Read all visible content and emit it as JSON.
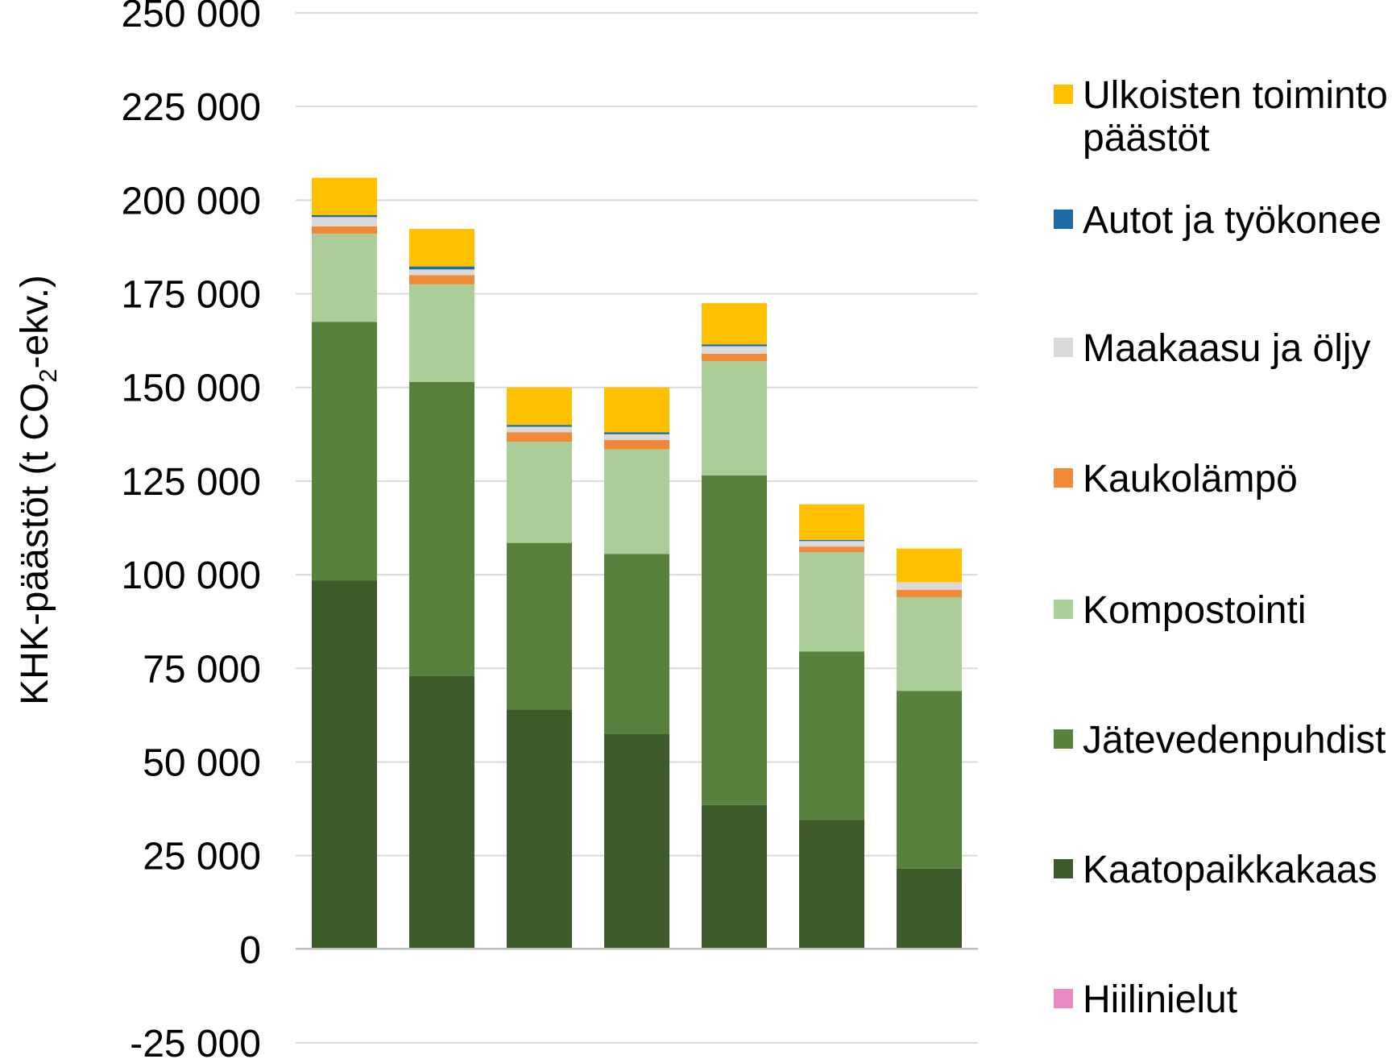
{
  "chart_data": {
    "type": "bar",
    "stacked": true,
    "title": "",
    "xlabel": "",
    "ylabel": "KHK-päästöt (t CO2-ekv.)",
    "ylabel_parts": {
      "before": "KHK-päästöt (t CO",
      "sub": "2",
      "after": "-ekv.)"
    },
    "ylim": [
      -25000,
      250000
    ],
    "yticks": [
      -25000,
      0,
      25000,
      50000,
      75000,
      100000,
      125000,
      150000,
      175000,
      200000,
      225000,
      250000
    ],
    "ytick_labels": [
      "-25 000",
      "0",
      "25 000",
      "50 000",
      "75 000",
      "100 000",
      "125 000",
      "150 000",
      "175 000",
      "200 000",
      "225 000",
      "250 000"
    ],
    "grid": true,
    "legend_position": "right",
    "categories": [
      "",
      "",
      "",
      "",
      "",
      "",
      ""
    ],
    "series": [
      {
        "name": "Kaatopaikkakaas",
        "color": "#3d5a2b",
        "values": [
          98500,
          73000,
          64000,
          57500,
          38500,
          34500,
          21500
        ]
      },
      {
        "name": "Jätevedenpuhdist",
        "color": "#57813c",
        "values": [
          69000,
          78500,
          44500,
          48000,
          88000,
          45000,
          47500
        ]
      },
      {
        "name": "Kompostointi",
        "color": "#abcd97",
        "values": [
          23500,
          26000,
          27000,
          28000,
          30500,
          26500,
          25000
        ]
      },
      {
        "name": "Kaukolämpö",
        "color": "#f08a36",
        "values": [
          2000,
          2500,
          2500,
          2500,
          2000,
          1500,
          2000
        ]
      },
      {
        "name": "Maakaasu ja öljy",
        "color": "#d9d9d9",
        "values": [
          2500,
          1500,
          1500,
          1500,
          2000,
          1500,
          2000
        ]
      },
      {
        "name": "Autot ja työkoneet",
        "color": "#1d6ba5",
        "values": [
          500,
          800,
          500,
          500,
          500,
          300,
          0
        ]
      },
      {
        "name": "Ulkoisten toimintojen päästöt",
        "color": "#ffc000",
        "values": [
          10000,
          10000,
          10000,
          12000,
          11000,
          9500,
          9000
        ]
      },
      {
        "name": "Hiilinielut",
        "color": "#e78ac3",
        "values": [
          0,
          0,
          0,
          0,
          0,
          0,
          0
        ]
      }
    ]
  },
  "legend": [
    {
      "label": "Ulkoisten toiminto\npäästöt",
      "color": "#ffc000"
    },
    {
      "label": "Autot ja työkonee",
      "color": "#1d6ba5"
    },
    {
      "label": "Maakaasu ja öljy",
      "color": "#d9d9d9"
    },
    {
      "label": "Kaukolämpö",
      "color": "#f08a36"
    },
    {
      "label": "Kompostointi",
      "color": "#abcd97"
    },
    {
      "label": "Jätevedenpuhdist",
      "color": "#57813c"
    },
    {
      "label": "Kaatopaikkakaas",
      "color": "#3d5a2b"
    },
    {
      "label": "Hiilinielut",
      "color": "#e78ac3"
    }
  ]
}
